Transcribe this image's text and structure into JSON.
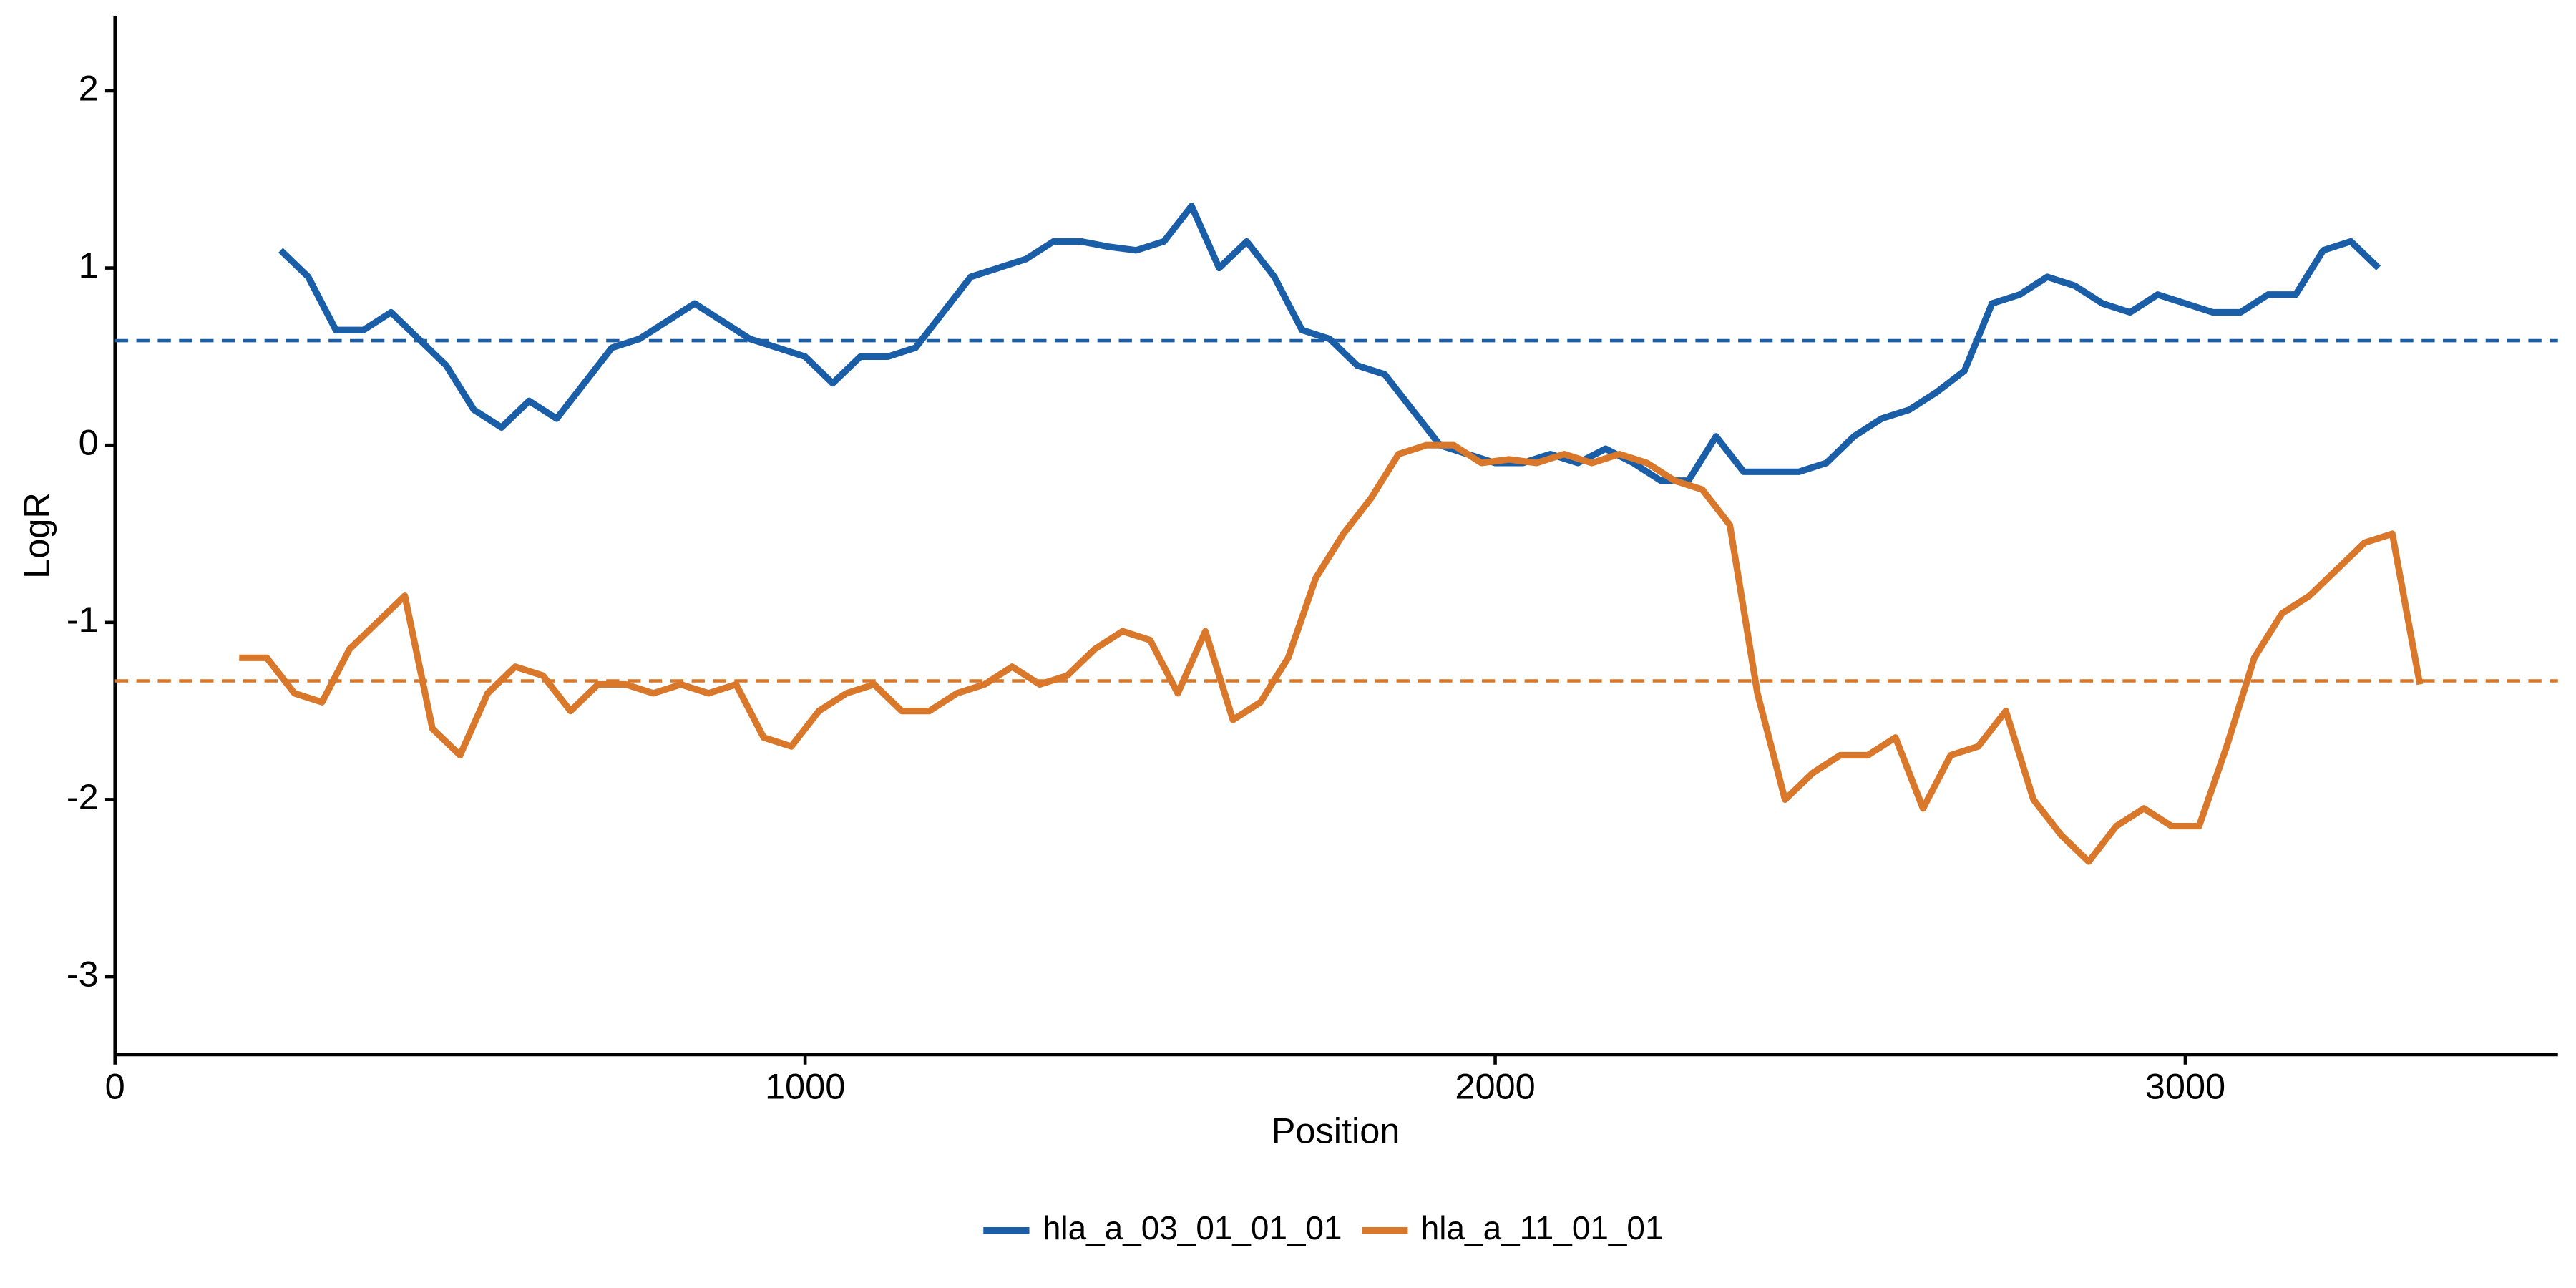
{
  "chart_data": {
    "type": "line",
    "xlabel": "Position",
    "ylabel": "LogR",
    "xlim": [
      0,
      3540
    ],
    "ylim": [
      -3.44,
      2.42
    ],
    "xticks": [
      0,
      1000,
      2000,
      3000
    ],
    "yticks": [
      -3,
      -2,
      -1,
      0,
      1,
      2
    ],
    "grid": false,
    "legend": "bottom",
    "series": [
      {
        "name": "hla_a_03_01_01_01",
        "color": "#1a5ea8",
        "x": [
          240,
          280,
          320,
          360,
          400,
          440,
          480,
          520,
          560,
          600,
          640,
          680,
          720,
          760,
          800,
          840,
          880,
          920,
          960,
          1000,
          1040,
          1080,
          1120,
          1160,
          1200,
          1240,
          1280,
          1320,
          1360,
          1400,
          1440,
          1480,
          1520,
          1560,
          1600,
          1640,
          1680,
          1720,
          1760,
          1800,
          1840,
          1880,
          1920,
          1960,
          2000,
          2040,
          2080,
          2120,
          2160,
          2200,
          2240,
          2280,
          2320,
          2360,
          2400,
          2440,
          2480,
          2520,
          2560,
          2600,
          2640,
          2680,
          2720,
          2760,
          2800,
          2840,
          2880,
          2920,
          2960,
          3000,
          3040,
          3080,
          3120,
          3160,
          3200,
          3240,
          3280
        ],
        "values": [
          1.1,
          0.95,
          0.65,
          0.65,
          0.75,
          0.6,
          0.45,
          0.2,
          0.1,
          0.25,
          0.15,
          0.35,
          0.55,
          0.6,
          0.7,
          0.8,
          0.7,
          0.6,
          0.55,
          0.5,
          0.35,
          0.5,
          0.5,
          0.55,
          0.75,
          0.95,
          1.0,
          1.05,
          1.15,
          1.15,
          1.12,
          1.1,
          1.15,
          1.35,
          1.0,
          1.15,
          0.95,
          0.65,
          0.6,
          0.45,
          0.4,
          0.2,
          0.0,
          -0.05,
          -0.1,
          -0.1,
          -0.05,
          -0.1,
          -0.02,
          -0.1,
          -0.2,
          -0.2,
          0.05,
          -0.15,
          -0.15,
          -0.15,
          -0.1,
          0.05,
          0.15,
          0.2,
          0.3,
          0.42,
          0.8,
          0.85,
          0.95,
          0.9,
          0.8,
          0.75,
          0.85,
          0.8,
          0.75,
          0.75,
          0.85,
          0.85,
          1.1,
          1.15,
          1.0
        ]
      },
      {
        "name": "hla_a_11_01_01",
        "color": "#d9782a",
        "x": [
          180,
          220,
          260,
          300,
          340,
          380,
          420,
          460,
          500,
          540,
          580,
          620,
          660,
          700,
          740,
          780,
          820,
          860,
          900,
          940,
          980,
          1020,
          1060,
          1100,
          1140,
          1180,
          1220,
          1260,
          1300,
          1340,
          1380,
          1420,
          1460,
          1500,
          1540,
          1580,
          1620,
          1660,
          1700,
          1740,
          1780,
          1820,
          1860,
          1900,
          1940,
          1980,
          2020,
          2060,
          2100,
          2140,
          2180,
          2220,
          2260,
          2300,
          2340,
          2380,
          2420,
          2460,
          2500,
          2540,
          2580,
          2620,
          2660,
          2700,
          2740,
          2780,
          2820,
          2860,
          2900,
          2940,
          2980,
          3020,
          3060,
          3100,
          3140,
          3180,
          3220,
          3260,
          3300,
          3340
        ],
        "values": [
          -1.2,
          -1.2,
          -1.4,
          -1.45,
          -1.15,
          -1.0,
          -0.85,
          -1.6,
          -1.75,
          -1.4,
          -1.25,
          -1.3,
          -1.5,
          -1.35,
          -1.35,
          -1.4,
          -1.35,
          -1.4,
          -1.35,
          -1.65,
          -1.7,
          -1.5,
          -1.4,
          -1.35,
          -1.5,
          -1.5,
          -1.4,
          -1.35,
          -1.25,
          -1.35,
          -1.3,
          -1.15,
          -1.05,
          -1.1,
          -1.4,
          -1.05,
          -1.55,
          -1.45,
          -1.2,
          -0.75,
          -0.5,
          -0.3,
          -0.05,
          0.0,
          0.0,
          -0.1,
          -0.08,
          -0.1,
          -0.05,
          -0.1,
          -0.05,
          -0.1,
          -0.2,
          -0.25,
          -0.45,
          -1.4,
          -2.0,
          -1.85,
          -1.75,
          -1.75,
          -1.65,
          -2.05,
          -1.75,
          -1.7,
          -1.5,
          -2.0,
          -2.2,
          -2.35,
          -2.15,
          -2.05,
          -2.15,
          -2.15,
          -1.7,
          -1.2,
          -0.95,
          -0.85,
          -0.7,
          -0.55,
          -0.5,
          -1.35
        ]
      }
    ],
    "reference_lines": [
      {
        "value": 0.59,
        "color": "#1a5ea8"
      },
      {
        "value": -1.33,
        "color": "#d9782a"
      }
    ]
  }
}
